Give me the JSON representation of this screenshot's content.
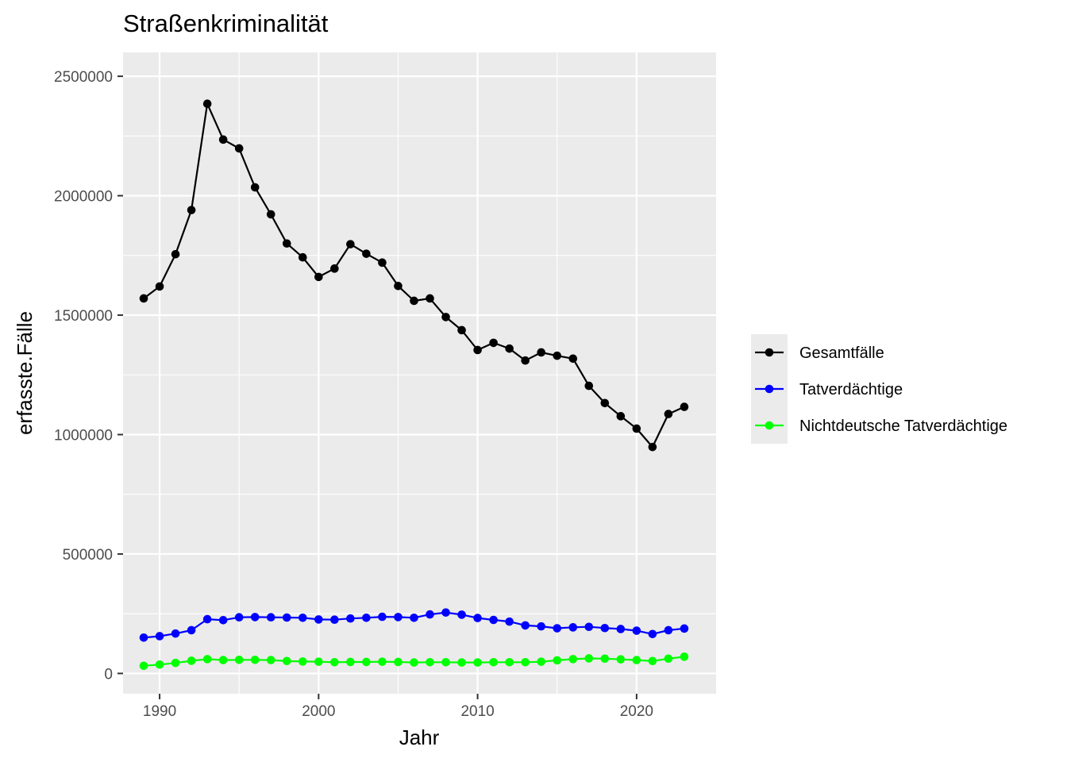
{
  "chart_data": {
    "type": "line",
    "title": "Straßenkriminalität",
    "xlabel": "Jahr",
    "ylabel": "erfasste.Fälle",
    "xlim": [
      1987.7,
      2025
    ],
    "ylim": [
      -85000,
      2600000
    ],
    "x_ticks": [
      1990,
      2000,
      2010,
      2020
    ],
    "x_tick_labels": [
      "1990",
      "2000",
      "2010",
      "2020"
    ],
    "y_ticks": [
      0,
      500000,
      1000000,
      1500000,
      2000000,
      2500000
    ],
    "y_tick_labels": [
      "0",
      "500000",
      "1000000",
      "1500000",
      "2000000",
      "2500000"
    ],
    "grid": true,
    "legend_position": "right",
    "x": [
      1989,
      1990,
      1991,
      1992,
      1993,
      1994,
      1995,
      1996,
      1997,
      1998,
      1999,
      2000,
      2001,
      2002,
      2003,
      2004,
      2005,
      2006,
      2007,
      2008,
      2009,
      2010,
      2011,
      2012,
      2013,
      2014,
      2015,
      2016,
      2017,
      2018,
      2019,
      2020,
      2021,
      2022,
      2023
    ],
    "series": [
      {
        "name": "Gesamtfälle",
        "color": "#000000",
        "values": [
          1570000,
          1620000,
          1755000,
          1940000,
          2385000,
          2235000,
          2198000,
          2035000,
          1922000,
          1800000,
          1742000,
          1660000,
          1695000,
          1797000,
          1757000,
          1720000,
          1622000,
          1560000,
          1570000,
          1492000,
          1437000,
          1354000,
          1384000,
          1360000,
          1310000,
          1344000,
          1330000,
          1318000,
          1204000,
          1132000,
          1077000,
          1025000,
          948000,
          1086000,
          1116000
        ]
      },
      {
        "name": "Tatverdächtige",
        "color": "#0000ff",
        "values": [
          150000,
          156000,
          167000,
          181000,
          227000,
          223000,
          235000,
          236000,
          235000,
          234000,
          233000,
          226000,
          225000,
          230000,
          233000,
          237000,
          236000,
          233000,
          247000,
          255000,
          246000,
          232000,
          224000,
          217000,
          201000,
          197000,
          189000,
          193000,
          195000,
          190000,
          186000,
          179000,
          165000,
          181000,
          188000
        ]
      },
      {
        "name": "Nichtdeutsche Tatverdächtige",
        "color": "#00ff00",
        "values": [
          32000,
          37000,
          44000,
          53000,
          60000,
          56000,
          57000,
          57000,
          56000,
          52000,
          50000,
          49000,
          47000,
          48000,
          48000,
          49000,
          48000,
          46000,
          47000,
          47000,
          46000,
          46000,
          47000,
          47000,
          47000,
          49000,
          55000,
          60000,
          63000,
          62000,
          59000,
          56000,
          52000,
          62000,
          70000
        ]
      }
    ]
  }
}
